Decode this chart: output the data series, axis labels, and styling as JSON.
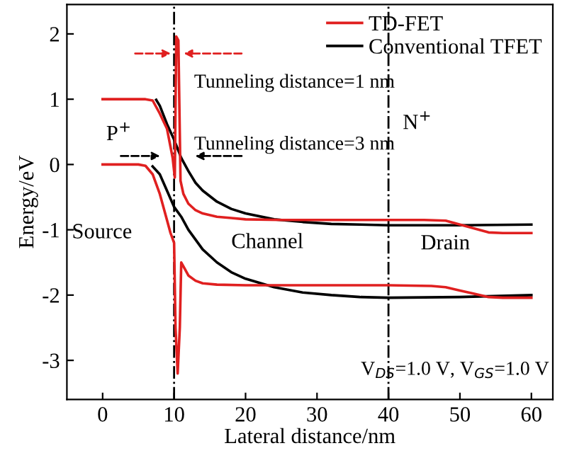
{
  "chart_data": {
    "type": "line",
    "xlabel": "Lateral distance/nm",
    "ylabel": "Energy/eV",
    "series": [
      {
        "name": "TD-FET",
        "color": "#e02020",
        "x": [
          0,
          5,
          6,
          7,
          8,
          9,
          9.8,
          10.1,
          10.3,
          10.6,
          10.9,
          11.3,
          12,
          13,
          14,
          16,
          18,
          20,
          25,
          30,
          35,
          40,
          45,
          48,
          50,
          52,
          54,
          56,
          58,
          60
        ],
        "values": [
          1,
          1,
          1,
          0.98,
          0.78,
          0.55,
          0.1,
          -0.2,
          1.96,
          1.9,
          -0.25,
          -0.45,
          -0.6,
          -0.7,
          -0.75,
          -0.8,
          -0.82,
          -0.84,
          -0.85,
          -0.85,
          -0.85,
          -0.85,
          -0.85,
          -0.86,
          -0.92,
          -0.98,
          -1.04,
          -1.05,
          -1.05,
          -1.05
        ]
      },
      {
        "name": "Conventional TFET",
        "color": "#000000",
        "x": [
          7.5,
          8,
          9,
          10,
          11,
          12,
          13,
          14,
          16,
          18,
          20,
          24,
          28,
          32,
          36,
          40,
          50,
          60
        ],
        "values": [
          0.99,
          0.9,
          0.62,
          0.38,
          0.1,
          -0.1,
          -0.28,
          -0.4,
          -0.57,
          -0.68,
          -0.75,
          -0.84,
          -0.88,
          -0.91,
          -0.92,
          -0.93,
          -0.93,
          -0.92
        ]
      },
      {
        "color": "#e02020",
        "x": [
          0,
          5,
          6,
          7,
          8,
          9,
          9.5,
          10,
          10.2,
          10.5,
          10.8,
          11,
          11.5,
          12,
          13,
          14,
          16,
          20,
          30,
          40,
          46,
          48,
          50,
          52,
          54,
          56,
          60
        ],
        "values": [
          0,
          0,
          -0.02,
          -0.15,
          -0.45,
          -0.85,
          -1.05,
          -1.2,
          -2.5,
          -3.2,
          -2.5,
          -1.5,
          -1.6,
          -1.7,
          -1.78,
          -1.82,
          -1.84,
          -1.85,
          -1.85,
          -1.85,
          -1.86,
          -1.88,
          -1.93,
          -1.98,
          -2.03,
          -2.04,
          -2.04
        ]
      },
      {
        "color": "#000000",
        "x": [
          7,
          8,
          9,
          10,
          11,
          12,
          14,
          16,
          18,
          20,
          24,
          28,
          32,
          36,
          40,
          50,
          60
        ],
        "values": [
          -0.03,
          -0.15,
          -0.4,
          -0.65,
          -0.8,
          -1.0,
          -1.3,
          -1.5,
          -1.65,
          -1.75,
          -1.88,
          -1.96,
          -2.0,
          -2.03,
          -2.04,
          -2.03,
          -2.0
        ]
      }
    ],
    "xlim": [
      -5,
      63
    ],
    "ylim": [
      -3.6,
      2.45
    ],
    "xticks": [
      0,
      10,
      20,
      30,
      40,
      50,
      60
    ],
    "yticks": [
      -3,
      -2,
      -1,
      0,
      1,
      2
    ],
    "ref_lines": [
      {
        "axis": "x",
        "value": 10,
        "color": "#000000",
        "line_style": "dashdot"
      },
      {
        "axis": "x",
        "value": 40,
        "color": "#000000",
        "line_style": "dashdot"
      }
    ],
    "annotations": [
      "Tunneling distance=1 nm",
      "Tunneling distance=3 nm",
      "P$^{+}$",
      "N$^{+}$",
      "Source",
      "Channel",
      "Drain",
      "V$_{DS}$=1.0 V, V$_{GS}$=1.0 V"
    ],
    "legend": "top right",
    "grid": false,
    "marker": "none",
    "line_style": "solid"
  }
}
